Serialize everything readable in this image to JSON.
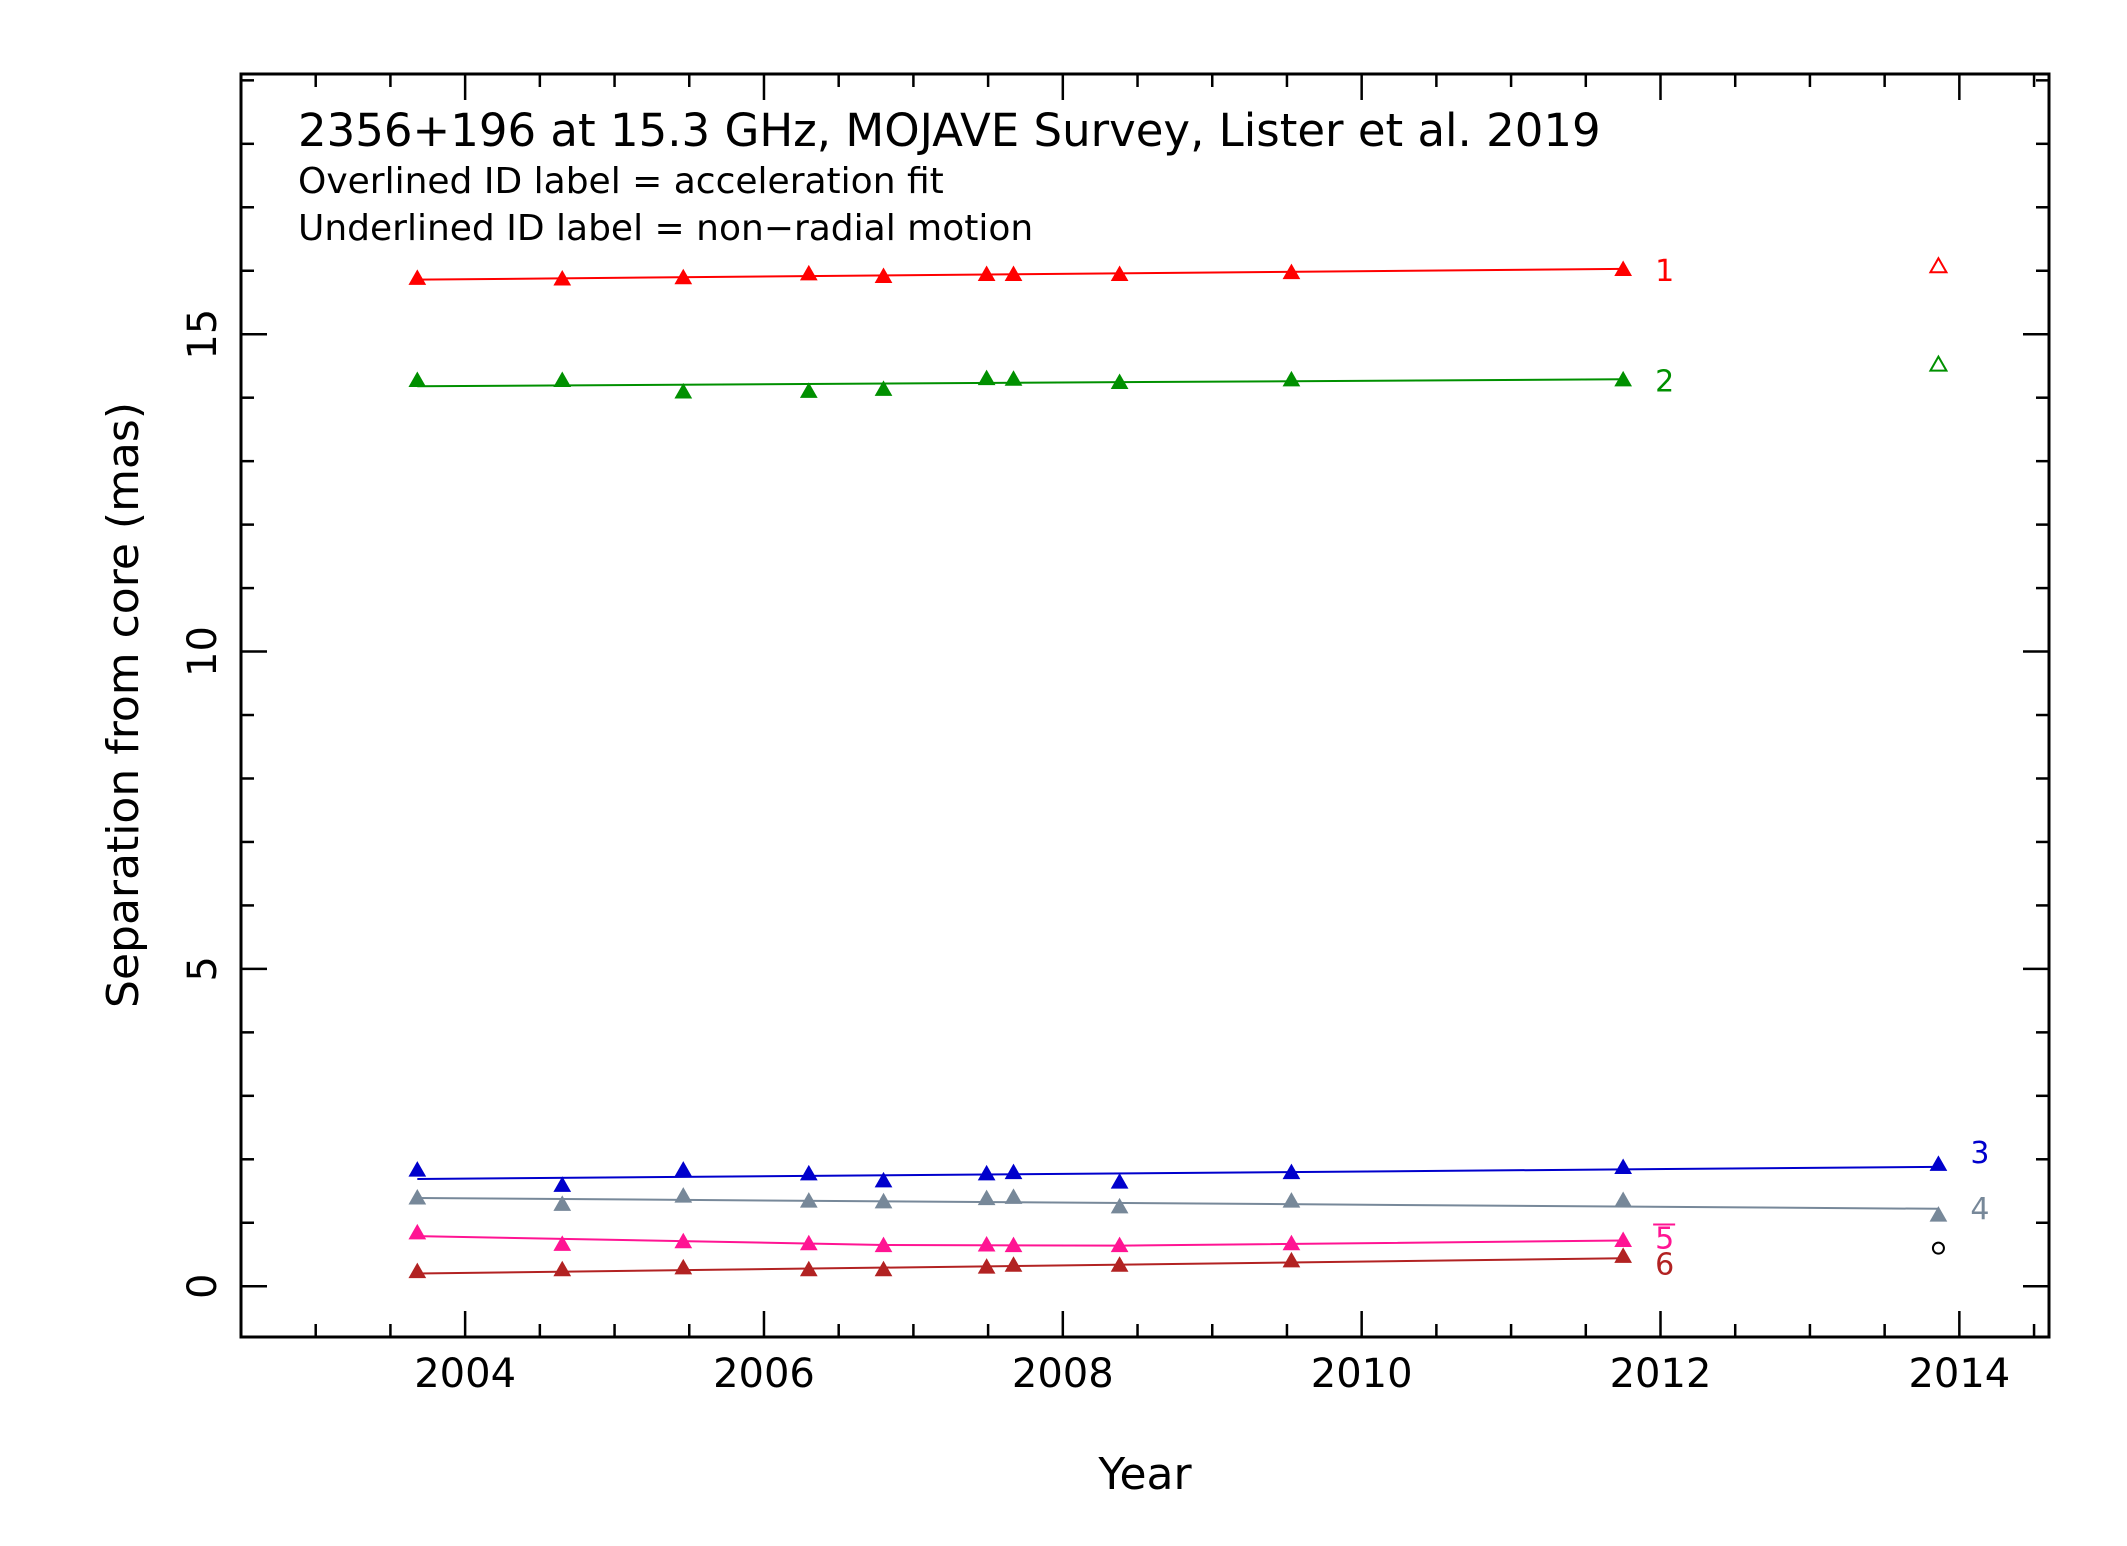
{
  "chart_data": {
    "type": "scatter",
    "title": "2356+196 at 15.3 GHz, MOJAVE Survey, Lister et al. 2019",
    "notes": [
      "Overlined ID label = acceleration fit",
      "Underlined ID label = non−radial motion"
    ],
    "xlabel": "Year",
    "ylabel": "Separation from core (mas)",
    "xlim": [
      2002.5,
      2014.6
    ],
    "ylim": [
      -0.8,
      19.1
    ],
    "xticks": [
      2004,
      2006,
      2008,
      2010,
      2012,
      2014
    ],
    "xtick_labels": [
      "2004",
      "2006",
      "2008",
      "2010",
      "2012",
      "2014"
    ],
    "yticks": [
      0,
      5,
      10,
      15
    ],
    "ytick_labels": [
      "0",
      "5",
      "10",
      "15"
    ],
    "grid": false,
    "legend": "none",
    "series": [
      {
        "name": "1",
        "color": "#ff0000",
        "points": [
          [
            2003.68,
            15.88
          ],
          [
            2004.65,
            15.87
          ],
          [
            2005.46,
            15.89
          ],
          [
            2006.3,
            15.95
          ],
          [
            2006.8,
            15.91
          ],
          [
            2007.49,
            15.94
          ],
          [
            2007.67,
            15.94
          ],
          [
            2008.38,
            15.94
          ],
          [
            2009.53,
            15.97
          ],
          [
            2011.75,
            16.02
          ]
        ],
        "fit": [
          [
            2003.68,
            15.86
          ],
          [
            2011.75,
            16.03
          ]
        ],
        "outlier": [
          2013.86,
          16.07
        ]
      },
      {
        "name": "2",
        "color": "#009000",
        "points": [
          [
            2003.68,
            14.27
          ],
          [
            2004.65,
            14.27
          ],
          [
            2005.46,
            14.09
          ],
          [
            2006.3,
            14.1
          ],
          [
            2006.8,
            14.13
          ],
          [
            2007.49,
            14.3
          ],
          [
            2007.67,
            14.29
          ],
          [
            2008.38,
            14.24
          ],
          [
            2009.53,
            14.28
          ],
          [
            2011.75,
            14.28
          ]
        ],
        "fit": [
          [
            2003.68,
            14.18
          ],
          [
            2011.75,
            14.29
          ]
        ],
        "outlier": [
          2013.86,
          14.52
        ]
      },
      {
        "name": "3",
        "color": "#0000cc",
        "points": [
          [
            2003.68,
            1.83
          ],
          [
            2004.65,
            1.59
          ],
          [
            2005.46,
            1.83
          ],
          [
            2006.3,
            1.77
          ],
          [
            2006.8,
            1.66
          ],
          [
            2007.49,
            1.77
          ],
          [
            2007.67,
            1.79
          ],
          [
            2008.38,
            1.64
          ],
          [
            2009.53,
            1.79
          ],
          [
            2011.75,
            1.87
          ],
          [
            2013.86,
            1.92
          ]
        ],
        "fit": [
          [
            2003.68,
            1.69
          ],
          [
            2013.86,
            1.88
          ]
        ]
      },
      {
        "name": "4",
        "color": "#778899",
        "points": [
          [
            2003.68,
            1.39
          ],
          [
            2004.65,
            1.29
          ],
          [
            2005.46,
            1.42
          ],
          [
            2006.3,
            1.34
          ],
          [
            2006.8,
            1.33
          ],
          [
            2007.49,
            1.38
          ],
          [
            2007.67,
            1.4
          ],
          [
            2008.38,
            1.25
          ],
          [
            2009.53,
            1.34
          ],
          [
            2011.75,
            1.35
          ],
          [
            2013.86,
            1.12
          ]
        ],
        "fit": [
          [
            2003.68,
            1.39
          ],
          [
            2013.86,
            1.22
          ]
        ]
      },
      {
        "name": "5",
        "color": "#ff1493",
        "points": [
          [
            2003.68,
            0.84
          ],
          [
            2004.65,
            0.66
          ],
          [
            2005.46,
            0.7
          ],
          [
            2006.3,
            0.67
          ],
          [
            2006.8,
            0.64
          ],
          [
            2007.49,
            0.65
          ],
          [
            2007.67,
            0.64
          ],
          [
            2008.38,
            0.64
          ],
          [
            2009.53,
            0.67
          ],
          [
            2011.75,
            0.72
          ]
        ],
        "fit": [
          [
            2003.68,
            0.79
          ],
          [
            2006.8,
            0.65
          ],
          [
            2008.4,
            0.64
          ],
          [
            2011.75,
            0.72
          ]
        ]
      },
      {
        "name": "6",
        "color": "#b22222",
        "points": [
          [
            2003.68,
            0.23
          ],
          [
            2004.65,
            0.26
          ],
          [
            2005.46,
            0.29
          ],
          [
            2006.3,
            0.26
          ],
          [
            2006.8,
            0.26
          ],
          [
            2007.49,
            0.3
          ],
          [
            2007.67,
            0.33
          ],
          [
            2008.38,
            0.33
          ],
          [
            2009.53,
            0.4
          ],
          [
            2011.75,
            0.47
          ]
        ],
        "fit": [
          [
            2003.68,
            0.2
          ],
          [
            2011.75,
            0.44
          ]
        ]
      }
    ],
    "unassigned": {
      "color": "#000000",
      "points": [
        [
          2013.86,
          0.6
        ]
      ]
    }
  }
}
